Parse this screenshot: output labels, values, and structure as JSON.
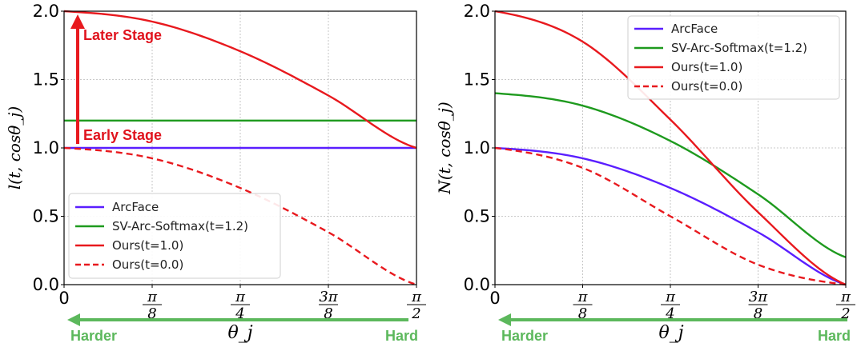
{
  "chart_data": [
    {
      "type": "line",
      "ylabel": "l(t, cosθ_j)",
      "xlabel": "θ_j",
      "xlim": [
        0,
        1.5708
      ],
      "ylim": [
        0,
        2.0
      ],
      "yticks": [
        0.0,
        0.5,
        1.0,
        1.5,
        2.0
      ],
      "ytick_labels": [
        "0.0",
        "0.5",
        "1.0",
        "1.5",
        "2.0"
      ],
      "xtick_labels": [
        {
          "top": "",
          "bottom": "0"
        },
        {
          "top": "π",
          "bottom": "8"
        },
        {
          "top": "π",
          "bottom": "4"
        },
        {
          "top": "3π",
          "bottom": "8"
        },
        {
          "top": "π",
          "bottom": "2"
        }
      ],
      "grid": true,
      "legend_position": "lower-left",
      "series": [
        {
          "name": "ArcFace",
          "color": "#5a1eff",
          "style": "solid",
          "x": [
            0,
            0.3927,
            0.7854,
            1.1781,
            1.5708
          ],
          "y": [
            1.0,
            1.0,
            1.0,
            1.0,
            1.0
          ]
        },
        {
          "name": "SV-Arc-Softmax(t=1.2)",
          "color": "#1e9a1e",
          "style": "solid",
          "x": [
            0,
            0.3927,
            0.7854,
            1.1781,
            1.5708
          ],
          "y": [
            1.2,
            1.2,
            1.2,
            1.2,
            1.2
          ]
        },
        {
          "name": "Ours(t=1.0)",
          "color": "#e8191e",
          "style": "solid",
          "x": [
            0,
            0.3927,
            0.7854,
            1.1781,
            1.5708
          ],
          "y": [
            2.0,
            1.924,
            1.707,
            1.383,
            1.0
          ]
        },
        {
          "name": "Ours(t=0.0)",
          "color": "#e8191e",
          "style": "dashed",
          "x": [
            0,
            0.3927,
            0.7854,
            1.1781,
            1.5708
          ],
          "y": [
            1.0,
            0.924,
            0.707,
            0.383,
            0.0
          ]
        }
      ],
      "annotations": {
        "later": "Later Stage",
        "early": "Early Stage"
      }
    },
    {
      "type": "line",
      "ylabel": "N(t, cosθ_j)",
      "xlabel": "θ_j",
      "xlim": [
        0,
        1.5708
      ],
      "ylim": [
        0,
        2.0
      ],
      "yticks": [
        0.0,
        0.5,
        1.0,
        1.5,
        2.0
      ],
      "ytick_labels": [
        "0.0",
        "0.5",
        "1.0",
        "1.5",
        "2.0"
      ],
      "xtick_labels": [
        {
          "top": "",
          "bottom": "0"
        },
        {
          "top": "π",
          "bottom": "8"
        },
        {
          "top": "π",
          "bottom": "4"
        },
        {
          "top": "3π",
          "bottom": "8"
        },
        {
          "top": "π",
          "bottom": "2"
        }
      ],
      "grid": true,
      "legend_position": "top-right",
      "series": [
        {
          "name": "ArcFace",
          "color": "#5a1eff",
          "style": "solid",
          "x": [
            0,
            0.3927,
            0.7854,
            1.1781,
            1.5708
          ],
          "y": [
            1.0,
            0.924,
            0.707,
            0.383,
            0.0
          ]
        },
        {
          "name": "SV-Arc-Softmax(t=1.2)",
          "color": "#1e9a1e",
          "style": "solid",
          "x": [
            0,
            0.3927,
            0.7854,
            1.1781,
            1.5708
          ],
          "y": [
            1.4,
            1.309,
            1.051,
            0.661,
            0.2
          ]
        },
        {
          "name": "Ours(t=1.0)",
          "color": "#e8191e",
          "style": "solid",
          "x": [
            0,
            0.3927,
            0.7854,
            1.1781,
            1.5708
          ],
          "y": [
            2.0,
            1.777,
            1.207,
            0.53,
            0.0
          ]
        },
        {
          "name": "Ours(t=0.0)",
          "color": "#e8191e",
          "style": "dashed",
          "x": [
            0,
            0.3927,
            0.7854,
            1.1781,
            1.5708
          ],
          "y": [
            1.0,
            0.854,
            0.5,
            0.146,
            0.0
          ]
        }
      ]
    }
  ],
  "arrow_labels": {
    "harder": "Harder",
    "hard": "Hard"
  }
}
